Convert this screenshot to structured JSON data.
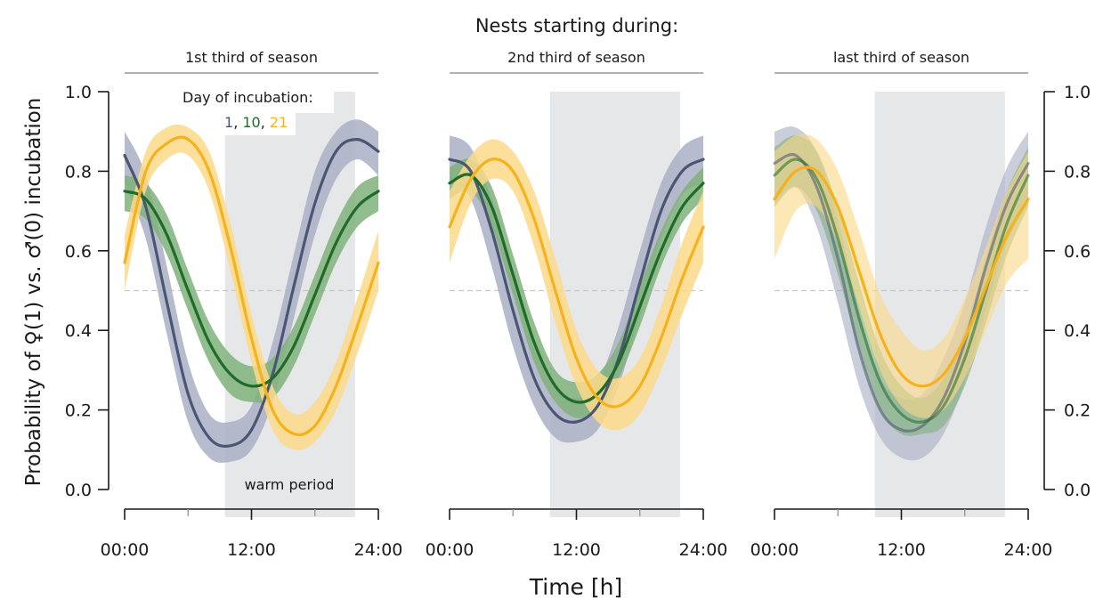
{
  "figure": {
    "super_title": "Nests starting during:",
    "xlabel": "Time [h]",
    "ylabel": "Probability of ♀(1) vs. ♂(0) incubation",
    "legend": {
      "title": "Day of incubation:",
      "entries": [
        "1",
        "10",
        "21"
      ],
      "separator": ", "
    },
    "annotation": "warm period",
    "colors": {
      "day1": "#4b5675",
      "day1_band": "#a9afc4",
      "day10": "#1f6b2a",
      "day10_band": "#7fb27a",
      "day21": "#f6b21a",
      "day21_band": "#fad98a",
      "warm_shade": "#e6e7e9",
      "axis": "#1a1a1a",
      "panel_rule": "#999999",
      "reference_line": "#c8c8c8"
    }
  },
  "chart_data": [
    {
      "type": "line",
      "title": "1st third of season",
      "xlim": [
        0,
        24
      ],
      "ylim": [
        0,
        1
      ],
      "x_ticks": [
        "00:00",
        "12:00",
        "24:00"
      ],
      "y_ticks": [
        "0.0",
        "0.2",
        "0.4",
        "0.6",
        "0.8",
        "1.0"
      ],
      "warm_period": [
        9.5,
        21.8
      ],
      "reference_y": 0.5,
      "series": [
        {
          "name": "1",
          "x": [
            0,
            2,
            4,
            6,
            8,
            10,
            12,
            14,
            16,
            18,
            20,
            22,
            24
          ],
          "y": [
            0.84,
            0.71,
            0.47,
            0.24,
            0.13,
            0.11,
            0.15,
            0.29,
            0.51,
            0.72,
            0.85,
            0.88,
            0.85
          ],
          "lower": [
            0.77,
            0.63,
            0.39,
            0.17,
            0.08,
            0.07,
            0.1,
            0.22,
            0.43,
            0.64,
            0.78,
            0.83,
            0.79
          ],
          "upper": [
            0.9,
            0.79,
            0.56,
            0.32,
            0.19,
            0.17,
            0.21,
            0.37,
            0.59,
            0.8,
            0.9,
            0.93,
            0.9
          ]
        },
        {
          "name": "10",
          "x": [
            0,
            2,
            4,
            6,
            8,
            10,
            12,
            14,
            16,
            18,
            20,
            22,
            24
          ],
          "y": [
            0.75,
            0.73,
            0.64,
            0.5,
            0.37,
            0.29,
            0.26,
            0.28,
            0.36,
            0.49,
            0.62,
            0.71,
            0.75
          ],
          "lower": [
            0.7,
            0.68,
            0.59,
            0.45,
            0.32,
            0.24,
            0.22,
            0.23,
            0.31,
            0.44,
            0.57,
            0.66,
            0.7
          ],
          "upper": [
            0.79,
            0.77,
            0.69,
            0.55,
            0.42,
            0.34,
            0.31,
            0.33,
            0.41,
            0.54,
            0.67,
            0.76,
            0.79
          ]
        },
        {
          "name": "21",
          "x": [
            0,
            2,
            4,
            6,
            8,
            10,
            12,
            14,
            16,
            18,
            20,
            22,
            24
          ],
          "y": [
            0.57,
            0.8,
            0.87,
            0.88,
            0.8,
            0.61,
            0.38,
            0.2,
            0.14,
            0.16,
            0.26,
            0.41,
            0.57
          ],
          "lower": [
            0.5,
            0.75,
            0.83,
            0.84,
            0.75,
            0.55,
            0.32,
            0.15,
            0.1,
            0.12,
            0.2,
            0.34,
            0.5
          ],
          "upper": [
            0.64,
            0.85,
            0.91,
            0.91,
            0.85,
            0.67,
            0.44,
            0.26,
            0.19,
            0.22,
            0.32,
            0.48,
            0.65
          ]
        }
      ]
    },
    {
      "type": "line",
      "title": "2nd third of season",
      "xlim": [
        0,
        24
      ],
      "ylim": [
        0,
        1
      ],
      "x_ticks": [
        "00:00",
        "12:00",
        "24:00"
      ],
      "y_ticks": [
        "0.0",
        "0.2",
        "0.4",
        "0.6",
        "0.8",
        "1.0"
      ],
      "warm_period": [
        9.5,
        21.8
      ],
      "reference_y": 0.5,
      "series": [
        {
          "name": "1",
          "x": [
            0,
            2,
            4,
            6,
            8,
            10,
            12,
            14,
            16,
            18,
            20,
            22,
            24
          ],
          "y": [
            0.83,
            0.8,
            0.65,
            0.45,
            0.28,
            0.19,
            0.17,
            0.21,
            0.33,
            0.52,
            0.7,
            0.8,
            0.83
          ],
          "lower": [
            0.77,
            0.73,
            0.56,
            0.36,
            0.21,
            0.13,
            0.12,
            0.15,
            0.26,
            0.44,
            0.63,
            0.74,
            0.77
          ],
          "upper": [
            0.89,
            0.86,
            0.73,
            0.54,
            0.36,
            0.26,
            0.23,
            0.27,
            0.41,
            0.6,
            0.77,
            0.86,
            0.89
          ]
        },
        {
          "name": "10",
          "x": [
            0,
            2,
            4,
            6,
            8,
            10,
            12,
            14,
            16,
            18,
            20,
            22,
            24
          ],
          "y": [
            0.77,
            0.79,
            0.71,
            0.54,
            0.37,
            0.26,
            0.22,
            0.24,
            0.32,
            0.46,
            0.6,
            0.71,
            0.77
          ],
          "lower": [
            0.73,
            0.75,
            0.66,
            0.49,
            0.32,
            0.22,
            0.18,
            0.2,
            0.28,
            0.41,
            0.56,
            0.67,
            0.73
          ],
          "upper": [
            0.81,
            0.83,
            0.76,
            0.59,
            0.42,
            0.3,
            0.27,
            0.29,
            0.37,
            0.51,
            0.65,
            0.75,
            0.81
          ]
        },
        {
          "name": "21",
          "x": [
            0,
            2,
            4,
            6,
            8,
            10,
            12,
            14,
            16,
            18,
            20,
            22,
            24
          ],
          "y": [
            0.66,
            0.78,
            0.83,
            0.8,
            0.68,
            0.5,
            0.33,
            0.23,
            0.21,
            0.26,
            0.38,
            0.53,
            0.66
          ],
          "lower": [
            0.57,
            0.72,
            0.78,
            0.75,
            0.61,
            0.42,
            0.26,
            0.17,
            0.15,
            0.19,
            0.3,
            0.44,
            0.57
          ],
          "upper": [
            0.75,
            0.84,
            0.88,
            0.85,
            0.75,
            0.58,
            0.4,
            0.3,
            0.28,
            0.33,
            0.46,
            0.62,
            0.75
          ]
        }
      ]
    },
    {
      "type": "line",
      "title": "last third of season",
      "xlim": [
        0,
        24
      ],
      "ylim": [
        0,
        1
      ],
      "x_ticks": [
        "00:00",
        "12:00",
        "24:00"
      ],
      "y_ticks": [
        "0.0",
        "0.2",
        "0.4",
        "0.6",
        "0.8",
        "1.0"
      ],
      "warm_period": [
        9.5,
        21.8
      ],
      "reference_y": 0.5,
      "series": [
        {
          "name": "1",
          "x": [
            0,
            2,
            4,
            6,
            8,
            10,
            12,
            14,
            16,
            18,
            20,
            22,
            24
          ],
          "y": [
            0.82,
            0.84,
            0.76,
            0.58,
            0.35,
            0.2,
            0.15,
            0.16,
            0.23,
            0.37,
            0.56,
            0.72,
            0.82
          ],
          "lower": [
            0.72,
            0.76,
            0.66,
            0.47,
            0.26,
            0.13,
            0.08,
            0.08,
            0.14,
            0.27,
            0.45,
            0.62,
            0.72
          ],
          "upper": [
            0.9,
            0.91,
            0.85,
            0.68,
            0.45,
            0.28,
            0.23,
            0.24,
            0.33,
            0.47,
            0.66,
            0.81,
            0.9
          ]
        },
        {
          "name": "10",
          "x": [
            0,
            2,
            4,
            6,
            8,
            10,
            12,
            14,
            16,
            18,
            20,
            22,
            24
          ],
          "y": [
            0.79,
            0.83,
            0.78,
            0.63,
            0.43,
            0.27,
            0.19,
            0.17,
            0.21,
            0.33,
            0.5,
            0.67,
            0.79
          ],
          "lower": [
            0.71,
            0.76,
            0.7,
            0.54,
            0.35,
            0.2,
            0.14,
            0.14,
            0.16,
            0.26,
            0.42,
            0.59,
            0.71
          ],
          "upper": [
            0.86,
            0.89,
            0.85,
            0.71,
            0.52,
            0.35,
            0.26,
            0.23,
            0.28,
            0.4,
            0.58,
            0.75,
            0.86
          ]
        },
        {
          "name": "21",
          "x": [
            0,
            2,
            4,
            6,
            8,
            10,
            12,
            14,
            16,
            18,
            20,
            22,
            24
          ],
          "y": [
            0.73,
            0.8,
            0.8,
            0.71,
            0.55,
            0.39,
            0.29,
            0.26,
            0.29,
            0.38,
            0.51,
            0.64,
            0.73
          ],
          "lower": [
            0.58,
            0.7,
            0.71,
            0.62,
            0.46,
            0.3,
            0.21,
            0.18,
            0.2,
            0.28,
            0.4,
            0.52,
            0.58
          ],
          "upper": [
            0.85,
            0.89,
            0.88,
            0.8,
            0.65,
            0.49,
            0.4,
            0.35,
            0.38,
            0.48,
            0.61,
            0.75,
            0.85
          ]
        }
      ]
    }
  ]
}
